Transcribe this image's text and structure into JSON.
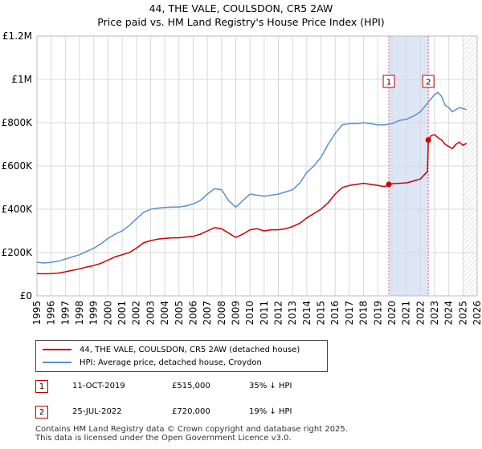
{
  "title": {
    "line1": "44, THE VALE, COULSDON, CR5 2AW",
    "line2": "Price paid vs. HM Land Registry's House Price Index (HPI)"
  },
  "legend": {
    "property_label": "44, THE VALE, COULSDON, CR5 2AW (detached house)",
    "hpi_label": "HPI: Average price, detached house, Croydon"
  },
  "annotations": [
    {
      "num": "1",
      "date": "11-OCT-2019",
      "price": "£515,000",
      "pct": "35% ↓ HPI"
    },
    {
      "num": "2",
      "date": "25-JUL-2022",
      "price": "£720,000",
      "pct": "19% ↓ HPI"
    }
  ],
  "footer": {
    "line1": "Contains HM Land Registry data © Crown copyright and database right 2025.",
    "line2": "This data is licensed under the Open Government Licence v3.0."
  },
  "colors": {
    "property": "#cc0000",
    "hpi": "#5b8fd0",
    "shade": "#dde6f7",
    "grid": "#d8d8d8",
    "vline": "#d06080"
  },
  "chart_data": {
    "type": "line",
    "title": "44, THE VALE, COULSDON, CR5 2AW",
    "subtitle": "Price paid vs. HM Land Registry's House Price Index (HPI)",
    "xlabel": "",
    "ylabel": "",
    "xlim": [
      1995,
      2026
    ],
    "ylim": [
      0,
      1200000
    ],
    "yticks": [
      0,
      200000,
      400000,
      600000,
      800000,
      1000000,
      1200000
    ],
    "ytick_labels": [
      "£0",
      "£200K",
      "£400K",
      "£600K",
      "£800K",
      "£1M",
      "£1.2M"
    ],
    "xticks": [
      1995,
      1996,
      1997,
      1998,
      1999,
      2000,
      2001,
      2002,
      2003,
      2004,
      2005,
      2006,
      2007,
      2008,
      2009,
      2010,
      2011,
      2012,
      2013,
      2014,
      2015,
      2016,
      2017,
      2018,
      2019,
      2020,
      2021,
      2022,
      2023,
      2024,
      2025,
      2026
    ],
    "grid": true,
    "legend_position": "bottom",
    "shaded_region": [
      2019.78,
      2022.56
    ],
    "forecast_from": 2025.0,
    "series": [
      {
        "name": "44, THE VALE, COULSDON, CR5 2AW (detached house)",
        "x": [
          1995.0,
          1995.5,
          1996.0,
          1996.5,
          1997.0,
          1997.5,
          1998.0,
          1998.5,
          1999.0,
          1999.5,
          2000.0,
          2000.5,
          2001.0,
          2001.5,
          2002.0,
          2002.5,
          2003.0,
          2003.5,
          2004.0,
          2004.5,
          2005.0,
          2005.5,
          2006.0,
          2006.5,
          2007.0,
          2007.5,
          2008.0,
          2008.5,
          2009.0,
          2009.5,
          2010.0,
          2010.5,
          2011.0,
          2011.5,
          2012.0,
          2012.5,
          2013.0,
          2013.5,
          2014.0,
          2014.5,
          2015.0,
          2015.5,
          2016.0,
          2016.5,
          2017.0,
          2017.5,
          2018.0,
          2018.5,
          2019.0,
          2019.5,
          2019.78,
          2020.0,
          2020.5,
          2021.0,
          2021.5,
          2022.0,
          2022.5,
          2022.56,
          2022.75,
          2023.0,
          2023.25,
          2023.5,
          2023.75,
          2024.0,
          2024.25,
          2024.5,
          2024.75,
          2025.0,
          2025.25
        ],
        "y": [
          103000,
          102000,
          103000,
          105000,
          111000,
          118000,
          125000,
          133000,
          140000,
          150000,
          165000,
          180000,
          190000,
          200000,
          220000,
          245000,
          255000,
          262000,
          265000,
          268000,
          268000,
          272000,
          275000,
          285000,
          300000,
          315000,
          310000,
          290000,
          270000,
          285000,
          305000,
          310000,
          300000,
          305000,
          305000,
          310000,
          320000,
          335000,
          360000,
          380000,
          400000,
          430000,
          470000,
          500000,
          510000,
          515000,
          520000,
          515000,
          510000,
          505000,
          515000,
          518000,
          520000,
          522000,
          530000,
          540000,
          575000,
          720000,
          740000,
          745000,
          730000,
          720000,
          700000,
          690000,
          680000,
          700000,
          710000,
          695000,
          705000
        ]
      },
      {
        "name": "HPI: Average price, detached house, Croydon",
        "x": [
          1995.0,
          1995.5,
          1996.0,
          1996.5,
          1997.0,
          1997.5,
          1998.0,
          1998.5,
          1999.0,
          1999.5,
          2000.0,
          2000.5,
          2001.0,
          2001.5,
          2002.0,
          2002.5,
          2003.0,
          2003.5,
          2004.0,
          2004.5,
          2005.0,
          2005.5,
          2006.0,
          2006.5,
          2007.0,
          2007.5,
          2008.0,
          2008.5,
          2009.0,
          2009.5,
          2010.0,
          2010.5,
          2011.0,
          2011.5,
          2012.0,
          2012.5,
          2013.0,
          2013.5,
          2014.0,
          2014.5,
          2015.0,
          2015.5,
          2016.0,
          2016.5,
          2017.0,
          2017.5,
          2018.0,
          2018.5,
          2019.0,
          2019.5,
          2020.0,
          2020.5,
          2021.0,
          2021.5,
          2022.0,
          2022.5,
          2023.0,
          2023.25,
          2023.5,
          2023.75,
          2024.0,
          2024.25,
          2024.5,
          2024.75,
          2025.0,
          2025.25
        ],
        "y": [
          155000,
          152000,
          155000,
          160000,
          170000,
          180000,
          190000,
          205000,
          220000,
          240000,
          265000,
          285000,
          300000,
          325000,
          355000,
          385000,
          400000,
          405000,
          408000,
          410000,
          410000,
          415000,
          425000,
          440000,
          470000,
          495000,
          490000,
          440000,
          410000,
          440000,
          470000,
          465000,
          460000,
          465000,
          470000,
          480000,
          490000,
          520000,
          570000,
          600000,
          640000,
          700000,
          750000,
          790000,
          795000,
          795000,
          800000,
          795000,
          790000,
          790000,
          795000,
          810000,
          815000,
          830000,
          850000,
          890000,
          930000,
          940000,
          920000,
          880000,
          870000,
          850000,
          860000,
          870000,
          865000,
          860000
        ]
      }
    ],
    "sales": [
      {
        "label": "1",
        "x": 2019.78,
        "y": 515000
      },
      {
        "label": "2",
        "x": 2022.56,
        "y": 720000
      }
    ]
  }
}
